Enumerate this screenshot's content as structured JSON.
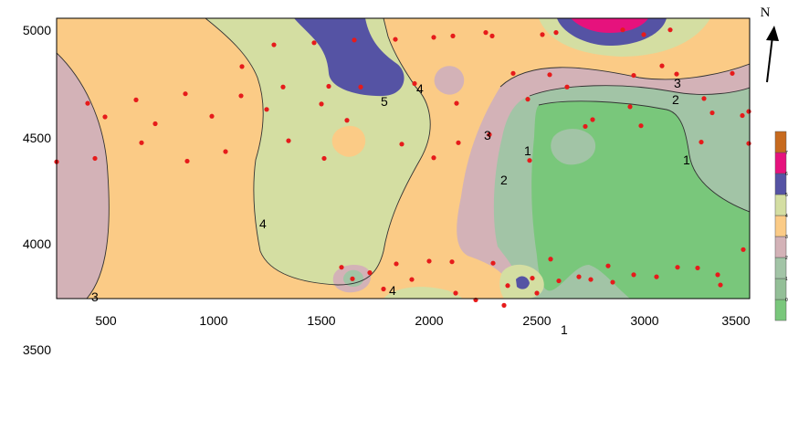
{
  "map": {
    "x_ticks": [
      "500",
      "1000",
      "1500",
      "2000",
      "2500",
      "3000",
      "3500"
    ],
    "y_ticks": [
      "5000",
      "4500",
      "4000",
      "3500"
    ],
    "north_label": "N",
    "contour_labels": [
      {
        "text": "5"
      },
      {
        "text": "4"
      },
      {
        "text": "3"
      },
      {
        "text": "2"
      },
      {
        "text": "1"
      },
      {
        "text": "4"
      },
      {
        "text": "4"
      },
      {
        "text": "3"
      },
      {
        "text": "3"
      },
      {
        "text": "2"
      },
      {
        "text": "1"
      },
      {
        "text": "1"
      }
    ],
    "legend": {
      "levels": [
        "0",
        "1",
        "2",
        "3",
        "4",
        "5",
        "6",
        "7"
      ],
      "colors": [
        "#79c77b",
        "#93bf97",
        "#a2c4a6",
        "#d3b2b7",
        "#fbcb86",
        "#d4dea2",
        "#5553a4",
        "#e6127d",
        "#c76a1e"
      ]
    },
    "colors": {
      "level_0_1": "#79c77b",
      "level_1_2": "#a2c4a6",
      "level_2_3": "#d3b2b7",
      "level_3_4": "#fbcb86",
      "level_4_5": "#d4dea2",
      "level_5_6": "#5553a4",
      "level_6_7": "#e6127d",
      "sample_points": "#e61b1b"
    }
  }
}
